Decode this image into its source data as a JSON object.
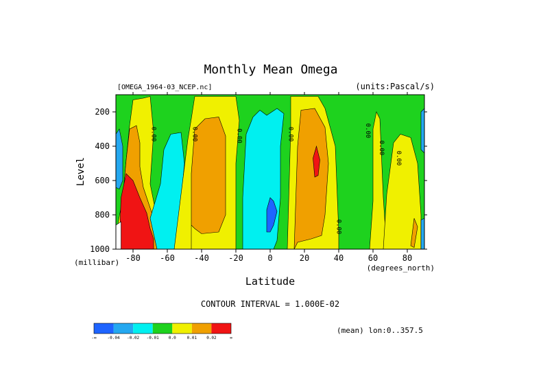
{
  "chart_data": {
    "type": "heatmap",
    "title": "Monthly Mean Omega",
    "file_label": "[OMEGA_1964-03_NCEP.nc]",
    "units_label": "(units:Pascal/s)",
    "xlabel": "Latitude",
    "x_units": "(degrees_north)",
    "ylabel": "Level",
    "y_units": "(millibar)",
    "x_ticks": [
      -80,
      -60,
      -40,
      -20,
      0,
      20,
      40,
      60,
      80
    ],
    "y_ticks": [
      200,
      400,
      600,
      800,
      1000
    ],
    "xlim": [
      -90,
      90
    ],
    "ylim": [
      1000,
      100
    ],
    "y_inverted": true,
    "contour_interval_text": "CONTOUR INTERVAL = 1.000E-02",
    "mean_text": "(mean) lon:0..357.5",
    "contour_label": "0.00",
    "colorbar": {
      "colors": [
        "#1e64ff",
        "#24a8f0",
        "#00f0f0",
        "#1ed21e",
        "#f0f000",
        "#f0a000",
        "#f01414"
      ],
      "tick_labels": [
        "-∞",
        "-0.04",
        "-0.02",
        "-0.01",
        "0.0",
        "0.01",
        "0.02",
        "∞"
      ]
    },
    "regions": [
      {
        "fill": "#1ed21e",
        "poly": [
          [
            -90,
            100
          ],
          [
            90,
            100
          ],
          [
            90,
            1000
          ],
          [
            -90,
            1000
          ]
        ]
      },
      {
        "fill": "#24a8f0",
        "poly": [
          [
            -90,
            330
          ],
          [
            -88,
            300
          ],
          [
            -86,
            400
          ],
          [
            -86,
            600
          ],
          [
            -88,
            650
          ],
          [
            -90,
            640
          ]
        ]
      },
      {
        "fill": "#f0f000",
        "poly": [
          [
            -90,
            920
          ],
          [
            -86,
            700
          ],
          [
            -84,
            480
          ],
          [
            -82,
            280
          ],
          [
            -80,
            130
          ],
          [
            -74,
            120
          ],
          [
            -70,
            110
          ],
          [
            -68,
            320
          ],
          [
            -70,
            620
          ],
          [
            -66,
            820
          ],
          [
            -62,
            910
          ],
          [
            -58,
            960
          ],
          [
            -52,
            1000
          ],
          [
            -90,
            1000
          ]
        ]
      },
      {
        "fill": "#f0a000",
        "poly": [
          [
            -88,
            960
          ],
          [
            -86,
            700
          ],
          [
            -84,
            480
          ],
          [
            -82,
            300
          ],
          [
            -78,
            280
          ],
          [
            -76,
            380
          ],
          [
            -76,
            520
          ],
          [
            -74,
            640
          ],
          [
            -68,
            820
          ],
          [
            -64,
            940
          ],
          [
            -62,
            1000
          ],
          [
            -88,
            1000
          ]
        ]
      },
      {
        "fill": "#f01414",
        "poly": [
          [
            -88,
            975
          ],
          [
            -87,
            700
          ],
          [
            -84,
            560
          ],
          [
            -80,
            600
          ],
          [
            -76,
            700
          ],
          [
            -72,
            790
          ],
          [
            -70,
            880
          ],
          [
            -68,
            940
          ],
          [
            -68,
            1000
          ],
          [
            -88,
            1000
          ]
        ]
      },
      {
        "fill": "#ffffff",
        "poly": [
          [
            -90,
            1000
          ],
          [
            -90,
            860
          ],
          [
            -87,
            840
          ],
          [
            -87,
            1000
          ]
        ]
      },
      {
        "fill": "#00f0f0",
        "poly": [
          [
            -66,
            1000
          ],
          [
            -70,
            820
          ],
          [
            -64,
            620
          ],
          [
            -62,
            420
          ],
          [
            -58,
            330
          ],
          [
            -52,
            320
          ],
          [
            -50,
            500
          ],
          [
            -52,
            720
          ],
          [
            -54,
            900
          ],
          [
            -56,
            1000
          ]
        ]
      },
      {
        "fill": "#f0f000",
        "poly": [
          [
            -56,
            1000
          ],
          [
            -48,
            360
          ],
          [
            -46,
            240
          ],
          [
            -44,
            110
          ],
          [
            -20,
            110
          ],
          [
            -18,
            250
          ],
          [
            -20,
            500
          ],
          [
            -20,
            800
          ],
          [
            -20,
            1000
          ]
        ]
      },
      {
        "fill": "#f0a000",
        "poly": [
          [
            -46,
            1000
          ],
          [
            -46,
            560
          ],
          [
            -44,
            300
          ],
          [
            -38,
            240
          ],
          [
            -30,
            230
          ],
          [
            -26,
            340
          ],
          [
            -26,
            560
          ],
          [
            -26,
            800
          ],
          [
            -30,
            900
          ],
          [
            -40,
            910
          ],
          [
            -44,
            880
          ],
          [
            -46,
            860
          ]
        ]
      },
      {
        "fill": "#00f0f0",
        "poly": [
          [
            -16,
            1000
          ],
          [
            -16,
            700
          ],
          [
            -14,
            330
          ],
          [
            -10,
            230
          ],
          [
            -6,
            190
          ],
          [
            -2,
            220
          ],
          [
            4,
            180
          ],
          [
            8,
            210
          ],
          [
            6,
            400
          ],
          [
            6,
            700
          ],
          [
            4,
            950
          ],
          [
            2,
            1000
          ]
        ]
      },
      {
        "fill": "#1e64ff",
        "poly": [
          [
            -2,
            900
          ],
          [
            -2,
            770
          ],
          [
            0,
            700
          ],
          [
            2,
            720
          ],
          [
            4,
            780
          ],
          [
            2,
            860
          ],
          [
            0,
            900
          ]
        ]
      },
      {
        "fill": "#f0f000",
        "poly": [
          [
            10,
            1000
          ],
          [
            12,
            300
          ],
          [
            12,
            110
          ],
          [
            28,
            110
          ],
          [
            32,
            180
          ],
          [
            38,
            400
          ],
          [
            40,
            900
          ],
          [
            40,
            1000
          ]
        ]
      },
      {
        "fill": "#f0a000",
        "poly": [
          [
            14,
            1000
          ],
          [
            16,
            400
          ],
          [
            18,
            190
          ],
          [
            26,
            180
          ],
          [
            32,
            290
          ],
          [
            34,
            500
          ],
          [
            32,
            800
          ],
          [
            30,
            920
          ],
          [
            24,
            940
          ],
          [
            16,
            960
          ]
        ]
      },
      {
        "fill": "#f01414",
        "poly": [
          [
            26,
            580
          ],
          [
            25,
            470
          ],
          [
            27,
            400
          ],
          [
            29,
            480
          ],
          [
            28,
            570
          ]
        ]
      },
      {
        "fill": "#f0f000",
        "poly": [
          [
            58,
            1000
          ],
          [
            60,
            720
          ],
          [
            60,
            300
          ],
          [
            62,
            200
          ],
          [
            64,
            240
          ],
          [
            66,
            700
          ],
          [
            68,
            1000
          ]
        ]
      },
      {
        "fill": "#f0f000",
        "poly": [
          [
            66,
            1000
          ],
          [
            68,
            680
          ],
          [
            72,
            380
          ],
          [
            76,
            330
          ],
          [
            82,
            350
          ],
          [
            86,
            500
          ],
          [
            88,
            800
          ],
          [
            88,
            1000
          ]
        ]
      },
      {
        "fill": "#f0a000",
        "poly": [
          [
            82,
            980
          ],
          [
            84,
            820
          ],
          [
            86,
            870
          ],
          [
            84,
            990
          ]
        ]
      },
      {
        "fill": "#24a8f0",
        "poly": [
          [
            88,
            1000
          ],
          [
            88,
            830
          ],
          [
            90,
            820
          ],
          [
            90,
            1000
          ]
        ]
      },
      {
        "fill": "#24a8f0",
        "poly": [
          [
            88,
            420
          ],
          [
            88,
            200
          ],
          [
            90,
            180
          ],
          [
            90,
            440
          ]
        ]
      }
    ],
    "contour_labels": [
      {
        "lat": -69,
        "lev": 330
      },
      {
        "lat": -45,
        "lev": 330
      },
      {
        "lat": -19,
        "lev": 340
      },
      {
        "lat": 11,
        "lev": 330
      },
      {
        "lat": 39,
        "lev": 870
      },
      {
        "lat": 56,
        "lev": 310
      },
      {
        "lat": 64,
        "lev": 410
      },
      {
        "lat": 74,
        "lev": 470
      }
    ]
  }
}
